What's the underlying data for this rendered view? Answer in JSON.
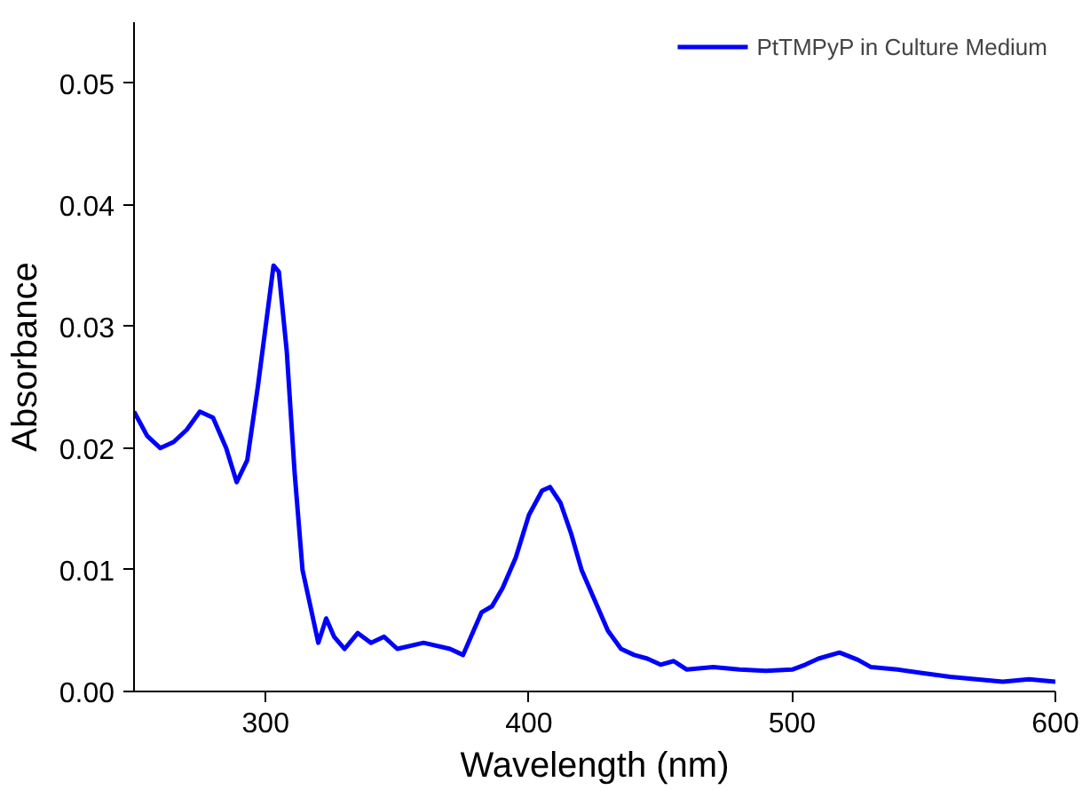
{
  "chart_data": {
    "type": "line",
    "xlabel": "Wavelength (nm)",
    "ylabel": "Absorbance",
    "x": [
      250,
      255,
      260,
      265,
      270,
      275,
      280,
      285,
      289,
      293,
      297,
      300,
      303,
      305,
      308,
      311,
      314,
      317,
      320,
      323,
      326,
      330,
      335,
      340,
      345,
      350,
      360,
      370,
      375,
      378,
      382,
      386,
      390,
      395,
      400,
      405,
      408,
      412,
      416,
      420,
      425,
      430,
      435,
      440,
      445,
      450,
      455,
      460,
      470,
      480,
      490,
      500,
      505,
      510,
      518,
      525,
      530,
      540,
      550,
      560,
      570,
      580,
      590,
      600
    ],
    "series": [
      {
        "name": "PtTMPyP in Culture Medium",
        "color": "#0000ff",
        "values": [
          0.023,
          0.021,
          0.02,
          0.0205,
          0.0215,
          0.023,
          0.0225,
          0.02,
          0.0172,
          0.019,
          0.025,
          0.03,
          0.035,
          0.0345,
          0.028,
          0.018,
          0.01,
          0.007,
          0.004,
          0.006,
          0.0045,
          0.0035,
          0.0048,
          0.004,
          0.0045,
          0.0035,
          0.004,
          0.0035,
          0.003,
          0.0045,
          0.0065,
          0.007,
          0.0085,
          0.011,
          0.0145,
          0.0165,
          0.0168,
          0.0155,
          0.013,
          0.01,
          0.0075,
          0.005,
          0.0035,
          0.003,
          0.0027,
          0.0022,
          0.0025,
          0.0018,
          0.002,
          0.0018,
          0.0017,
          0.0018,
          0.0022,
          0.0027,
          0.0032,
          0.0026,
          0.002,
          0.0018,
          0.0015,
          0.0012,
          0.001,
          0.0008,
          0.001,
          0.0008
        ]
      }
    ],
    "xlim": [
      250,
      600
    ],
    "ylim": [
      0,
      0.055
    ],
    "xticks": [
      300,
      400,
      500,
      600
    ],
    "yticks": [
      {
        "value": 0,
        "label": "0.00"
      },
      {
        "value": 0.01,
        "label": "0.01"
      },
      {
        "value": 0.02,
        "label": "0.02"
      },
      {
        "value": 0.03,
        "label": "0.03"
      },
      {
        "value": 0.04,
        "label": "0.04"
      },
      {
        "value": 0.05,
        "label": "0.05"
      }
    ],
    "legend": "top right",
    "grid": false,
    "line_style": "solid"
  }
}
